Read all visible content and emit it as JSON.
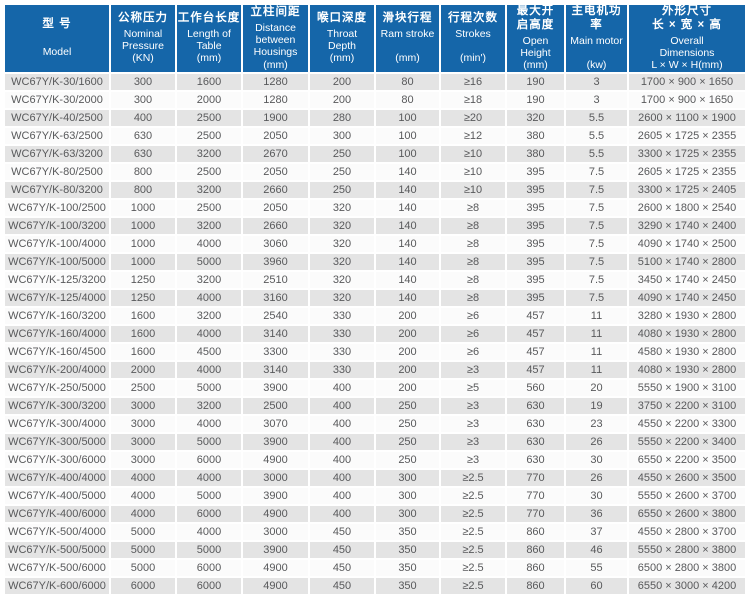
{
  "colors": {
    "header_bg": "#1566a9",
    "header_text": "#ffffff",
    "row_alt_bg": "#e4e4e4",
    "row_bg": "#fbfbfb",
    "text": "#58595b"
  },
  "table": {
    "type": "table",
    "header": {
      "columns": [
        {
          "zh": "型 号",
          "en": "\nModel"
        },
        {
          "zh": "公称压力",
          "en": "Nominal\nPressure\n(KN)"
        },
        {
          "zh": "工作台长度",
          "en": "Length of\nTable\n(mm)"
        },
        {
          "zh": "立柱间距",
          "en": "Distance\nbetween\nHousings\n(mm)"
        },
        {
          "zh": "喉口深度",
          "en": "Throat\nDepth\n(mm)"
        },
        {
          "zh": "滑块行程",
          "en": "Ram stroke\n\n(mm)"
        },
        {
          "zh": "行程次数",
          "en": "Strokes\n\n(min')"
        },
        {
          "zh": "最大开\n启高度",
          "en": "Open\nHeight\n(mm)"
        },
        {
          "zh": "主电机功率",
          "en": "Main motor\n\n(kw)"
        },
        {
          "zh": "外形尺寸\n长 × 宽 × 高",
          "en": "Overall\nDimensions\nL × W × H(mm)"
        }
      ]
    },
    "rows": [
      [
        "WC67Y/K-30/1600",
        "300",
        "1600",
        "1280",
        "200",
        "80",
        "≥16",
        "190",
        "3",
        "1700 × 900 × 1650"
      ],
      [
        "WC67Y/K-30/2000",
        "300",
        "2000",
        "1280",
        "200",
        "80",
        "≥18",
        "190",
        "3",
        "1700 × 900 × 1650"
      ],
      [
        "WC67Y/K-40/2500",
        "400",
        "2500",
        "1900",
        "280",
        "100",
        "≥20",
        "320",
        "5.5",
        "2600 × 1100 × 1900"
      ],
      [
        "WC67Y/K-63/2500",
        "630",
        "2500",
        "2050",
        "300",
        "100",
        "≥12",
        "380",
        "5.5",
        "2605 × 1725 × 2355"
      ],
      [
        "WC67Y/K-63/3200",
        "630",
        "3200",
        "2670",
        "250",
        "100",
        "≥10",
        "380",
        "5.5",
        "3300 × 1725 × 2355"
      ],
      [
        "WC67Y/K-80/2500",
        "800",
        "2500",
        "2050",
        "250",
        "140",
        "≥10",
        "395",
        "7.5",
        "2605 × 1725 × 2355"
      ],
      [
        "WC67Y/K-80/3200",
        "800",
        "3200",
        "2660",
        "250",
        "140",
        "≥10",
        "395",
        "7.5",
        "3300 × 1725 × 2405"
      ],
      [
        "WC67Y/K-100/2500",
        "1000",
        "2500",
        "2050",
        "320",
        "140",
        "≥8",
        "395",
        "7.5",
        "2600 × 1800 × 2540"
      ],
      [
        "WC67Y/K-100/3200",
        "1000",
        "3200",
        "2660",
        "320",
        "140",
        "≥8",
        "395",
        "7.5",
        "3290 × 1740 × 2400"
      ],
      [
        "WC67Y/K-100/4000",
        "1000",
        "4000",
        "3060",
        "320",
        "140",
        "≥8",
        "395",
        "7.5",
        "4090 × 1740 × 2500"
      ],
      [
        "WC67Y/K-100/5000",
        "1000",
        "5000",
        "3960",
        "320",
        "140",
        "≥8",
        "395",
        "7.5",
        "5100 × 1740 × 2800"
      ],
      [
        "WC67Y/K-125/3200",
        "1250",
        "3200",
        "2510",
        "320",
        "140",
        "≥8",
        "395",
        "7.5",
        "3450 × 1740 × 2450"
      ],
      [
        "WC67Y/K-125/4000",
        "1250",
        "4000",
        "3160",
        "320",
        "140",
        "≥8",
        "395",
        "7.5",
        "4090 × 1740 × 2450"
      ],
      [
        "WC67Y/K-160/3200",
        "1600",
        "3200",
        "2540",
        "330",
        "200",
        "≥6",
        "457",
        "11",
        "3280 × 1930 × 2800"
      ],
      [
        "WC67Y/K-160/4000",
        "1600",
        "4000",
        "3140",
        "330",
        "200",
        "≥6",
        "457",
        "11",
        "4080 × 1930 × 2800"
      ],
      [
        "WC67Y/K-160/4500",
        "1600",
        "4500",
        "3300",
        "330",
        "200",
        "≥6",
        "457",
        "11",
        "4580 × 1930 × 2800"
      ],
      [
        "WC67Y/K-200/4000",
        "2000",
        "4000",
        "3140",
        "330",
        "200",
        "≥3",
        "457",
        "11",
        "4080 × 1930 × 2800"
      ],
      [
        "WC67Y/K-250/5000",
        "2500",
        "5000",
        "3900",
        "400",
        "200",
        "≥5",
        "560",
        "20",
        "5550 × 1900 × 3100"
      ],
      [
        "WC67Y/K-300/3200",
        "3000",
        "3200",
        "2500",
        "400",
        "250",
        "≥3",
        "630",
        "19",
        "3750 × 2200 × 3100"
      ],
      [
        "WC67Y/K-300/4000",
        "3000",
        "4000",
        "3070",
        "400",
        "250",
        "≥3",
        "630",
        "23",
        "4550 × 2200 × 3300"
      ],
      [
        "WC67Y/K-300/5000",
        "3000",
        "5000",
        "3900",
        "400",
        "250",
        "≥3",
        "630",
        "26",
        "5550 × 2200 × 3400"
      ],
      [
        "WC67Y/K-300/6000",
        "3000",
        "6000",
        "4900",
        "400",
        "250",
        "≥3",
        "630",
        "30",
        "6550 × 2200 × 3500"
      ],
      [
        "WC67Y/K-400/4000",
        "4000",
        "4000",
        "3000",
        "400",
        "300",
        "≥2.5",
        "770",
        "26",
        "4550 × 2600 × 3500"
      ],
      [
        "WC67Y/K-400/5000",
        "4000",
        "5000",
        "3900",
        "400",
        "300",
        "≥2.5",
        "770",
        "30",
        "5550 × 2600 × 3700"
      ],
      [
        "WC67Y/K-400/6000",
        "4000",
        "6000",
        "4900",
        "400",
        "300",
        "≥2.5",
        "770",
        "36",
        "6550 × 2600 × 3800"
      ],
      [
        "WC67Y/K-500/4000",
        "5000",
        "4000",
        "3000",
        "450",
        "350",
        "≥2.5",
        "860",
        "37",
        "4550 × 2800 × 3700"
      ],
      [
        "WC67Y/K-500/5000",
        "5000",
        "5000",
        "3900",
        "450",
        "350",
        "≥2.5",
        "860",
        "46",
        "5550 × 2800 × 3800"
      ],
      [
        "WC67Y/K-500/6000",
        "5000",
        "6000",
        "4900",
        "450",
        "350",
        "≥2.5",
        "860",
        "55",
        "6500 × 2800 × 3800"
      ],
      [
        "WC67Y/K-600/6000",
        "6000",
        "6000",
        "4900",
        "450",
        "350",
        "≥2.5",
        "860",
        "60",
        "6550 × 3000 × 4200"
      ]
    ]
  }
}
